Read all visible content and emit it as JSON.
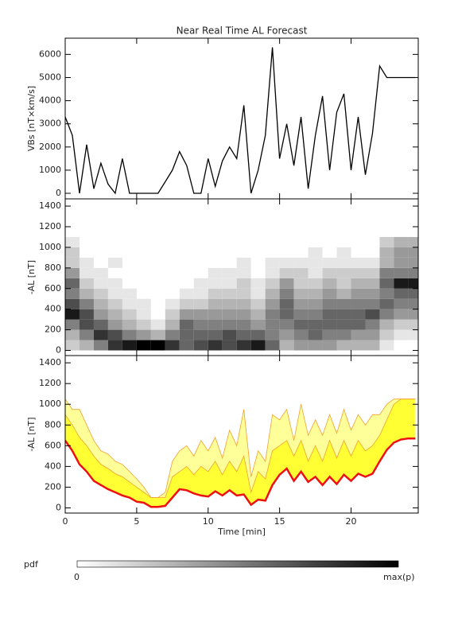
{
  "chart_data": [
    {
      "type": "line",
      "title": "Near Real Time AL Forecast",
      "ylabel": "VBs [nT×km/s]",
      "color": "#000000",
      "x": [
        0,
        0.5,
        1,
        1.5,
        2,
        2.5,
        3,
        3.5,
        4,
        4.5,
        5,
        5.5,
        6,
        6.5,
        7,
        7.5,
        8,
        8.5,
        9,
        9.5,
        10,
        10.5,
        11,
        11.5,
        12,
        12.5,
        13,
        13.5,
        14,
        14.5,
        15,
        15.5,
        16,
        16.5,
        17,
        17.5,
        18,
        18.5,
        19,
        19.5,
        20,
        20.5,
        21,
        21.5,
        22,
        22.5,
        23,
        23.5,
        24,
        24.5
      ],
      "values": [
        3300,
        2500,
        0,
        2100,
        200,
        1300,
        400,
        0,
        1500,
        0,
        0,
        0,
        0,
        0,
        500,
        1000,
        1800,
        1200,
        0,
        0,
        1500,
        300,
        1400,
        2000,
        1500,
        3800,
        0,
        1000,
        2500,
        6300,
        1500,
        3000,
        1200,
        3300,
        200,
        2500,
        4200,
        1000,
        3500,
        4300,
        1000,
        3300,
        800,
        2600,
        5500,
        5000,
        5000,
        5000,
        5000,
        5000
      ],
      "xlim": [
        0,
        24.7
      ],
      "ylim": [
        -240,
        6700
      ],
      "yticks": [
        0,
        1000,
        2000,
        3000,
        4000,
        5000,
        6000
      ]
    },
    {
      "type": "heatmap",
      "ylabel": "-AL [nT]",
      "xbins": [
        0,
        1,
        2,
        3,
        4,
        5,
        6,
        7,
        8,
        9,
        10,
        11,
        12,
        13,
        14,
        15,
        16,
        17,
        18,
        19,
        20,
        21,
        22,
        23,
        24,
        25
      ],
      "ybins": [
        0,
        100,
        200,
        300,
        400,
        500,
        600,
        700,
        800,
        900,
        1000,
        1100
      ],
      "z": [
        [
          0.2,
          0.3,
          0.5,
          0.9,
          0.7,
          0.5,
          0.6,
          0.4,
          0.2,
          0.2,
          0.1
        ],
        [
          0.3,
          0.5,
          0.7,
          0.7,
          0.5,
          0.3,
          0.2,
          0.1,
          0.1,
          0,
          0
        ],
        [
          0.5,
          0.8,
          0.6,
          0.4,
          0.3,
          0.2,
          0.1,
          0.1,
          0,
          0,
          0
        ],
        [
          0.8,
          0.7,
          0.4,
          0.3,
          0.2,
          0.1,
          0.1,
          0,
          0.1,
          0,
          0
        ],
        [
          0.9,
          0.5,
          0.3,
          0.2,
          0.1,
          0.1,
          0,
          0,
          0,
          0,
          0
        ],
        [
          1,
          0.4,
          0.2,
          0.1,
          0.1,
          0,
          0,
          0,
          0,
          0,
          0
        ],
        [
          1,
          0.3,
          0.1,
          0,
          0,
          0,
          0,
          0,
          0,
          0,
          0
        ],
        [
          0.8,
          0.5,
          0.3,
          0.2,
          0.1,
          0,
          0,
          0,
          0,
          0,
          0
        ],
        [
          0.6,
          0.6,
          0.6,
          0.4,
          0.2,
          0.1,
          0,
          0,
          0,
          0,
          0
        ],
        [
          0.7,
          0.6,
          0.5,
          0.4,
          0.2,
          0.1,
          0.1,
          0,
          0,
          0,
          0
        ],
        [
          0.8,
          0.6,
          0.5,
          0.4,
          0.3,
          0.2,
          0.1,
          0.1,
          0,
          0,
          0
        ],
        [
          0.7,
          0.7,
          0.5,
          0.4,
          0.3,
          0.2,
          0.1,
          0.1,
          0,
          0,
          0
        ],
        [
          0.8,
          0.6,
          0.5,
          0.4,
          0.3,
          0.2,
          0.2,
          0.1,
          0.1,
          0,
          0
        ],
        [
          0.9,
          0.6,
          0.4,
          0.3,
          0.2,
          0.1,
          0.1,
          0,
          0,
          0,
          0
        ],
        [
          0.6,
          0.5,
          0.5,
          0.5,
          0.4,
          0.3,
          0.2,
          0.1,
          0.1,
          0,
          0
        ],
        [
          0.3,
          0.4,
          0.5,
          0.6,
          0.6,
          0.5,
          0.4,
          0.2,
          0.1,
          0,
          0
        ],
        [
          0.4,
          0.5,
          0.6,
          0.5,
          0.4,
          0.3,
          0.2,
          0.2,
          0.1,
          0,
          0
        ],
        [
          0.4,
          0.6,
          0.6,
          0.5,
          0.4,
          0.3,
          0.2,
          0.1,
          0.1,
          0.1,
          0
        ],
        [
          0.4,
          0.5,
          0.6,
          0.6,
          0.5,
          0.4,
          0.3,
          0.2,
          0.1,
          0,
          0
        ],
        [
          0.3,
          0.5,
          0.6,
          0.6,
          0.5,
          0.3,
          0.2,
          0.2,
          0.1,
          0.1,
          0
        ],
        [
          0.3,
          0.4,
          0.6,
          0.6,
          0.5,
          0.4,
          0.3,
          0.2,
          0.1,
          0,
          0
        ],
        [
          0.3,
          0.4,
          0.5,
          0.7,
          0.5,
          0.4,
          0.3,
          0.2,
          0.1,
          0,
          0
        ],
        [
          0.1,
          0.2,
          0.3,
          0.5,
          0.6,
          0.5,
          0.6,
          0.5,
          0.3,
          0.3,
          0.2
        ],
        [
          0,
          0.1,
          0.2,
          0.4,
          0.5,
          0.6,
          0.9,
          0.5,
          0.4,
          0.4,
          0.3
        ],
        [
          0,
          0.1,
          0.2,
          0.4,
          0.5,
          0.6,
          0.9,
          0.5,
          0.4,
          0.4,
          0.3
        ]
      ],
      "xlim": [
        0,
        24.7
      ],
      "ylim": [
        -50,
        1470
      ],
      "yticks": [
        0,
        200,
        400,
        600,
        800,
        1000,
        1200,
        1400
      ]
    },
    {
      "type": "band",
      "ylabel": "-AL [nT]",
      "xlabel": "Time [min]",
      "x": [
        0,
        0.5,
        1,
        1.5,
        2,
        2.5,
        3,
        3.5,
        4,
        4.5,
        5,
        5.5,
        6,
        6.5,
        7,
        7.5,
        8,
        8.5,
        9,
        9.5,
        10,
        10.5,
        11,
        11.5,
        12,
        12.5,
        13,
        13.5,
        14,
        14.5,
        15,
        15.5,
        16,
        16.5,
        17,
        17.5,
        18,
        18.5,
        19,
        19.5,
        20,
        20.5,
        21,
        21.5,
        22,
        22.5,
        23,
        23.5,
        24,
        24.5
      ],
      "series": [
        {
          "color": "#ffff99",
          "line_color": "#f0a030",
          "values": [
            1050,
            950,
            950,
            800,
            650,
            550,
            520,
            450,
            420,
            350,
            280,
            200,
            100,
            100,
            150,
            450,
            550,
            600,
            500,
            650,
            550,
            680,
            480,
            750,
            600,
            950,
            300,
            550,
            450,
            900,
            850,
            950,
            650,
            1000,
            700,
            850,
            700,
            900,
            720,
            950,
            750,
            900,
            800,
            900,
            900,
            1000,
            1050,
            1050,
            1050,
            1050
          ]
        },
        {
          "color": "#ffff33",
          "line_color": "#f0a030",
          "values": [
            900,
            800,
            680,
            600,
            500,
            420,
            380,
            330,
            300,
            250,
            200,
            150,
            100,
            100,
            100,
            300,
            350,
            400,
            320,
            400,
            350,
            450,
            320,
            450,
            350,
            500,
            150,
            350,
            280,
            550,
            600,
            650,
            500,
            650,
            450,
            600,
            450,
            650,
            480,
            650,
            500,
            650,
            550,
            600,
            700,
            850,
            1000,
            1050,
            1050,
            1050
          ]
        },
        {
          "color": "#ee1111",
          "values": [
            650,
            550,
            420,
            350,
            260,
            220,
            180,
            150,
            120,
            100,
            60,
            50,
            10,
            10,
            20,
            100,
            180,
            170,
            140,
            120,
            110,
            160,
            120,
            170,
            120,
            130,
            30,
            80,
            70,
            220,
            320,
            380,
            260,
            350,
            250,
            300,
            220,
            300,
            230,
            320,
            260,
            330,
            300,
            330,
            450,
            560,
            630,
            660,
            670,
            670
          ]
        }
      ],
      "xlim": [
        0,
        24.7
      ],
      "ylim": [
        -50,
        1470
      ],
      "xticks": [
        0,
        5,
        10,
        15,
        20
      ],
      "yticks": [
        0,
        200,
        400,
        600,
        800,
        1000,
        1200,
        1400
      ]
    }
  ],
  "colorbar": {
    "label": "pdf",
    "min_label": "0",
    "max_label": "max(p)"
  }
}
